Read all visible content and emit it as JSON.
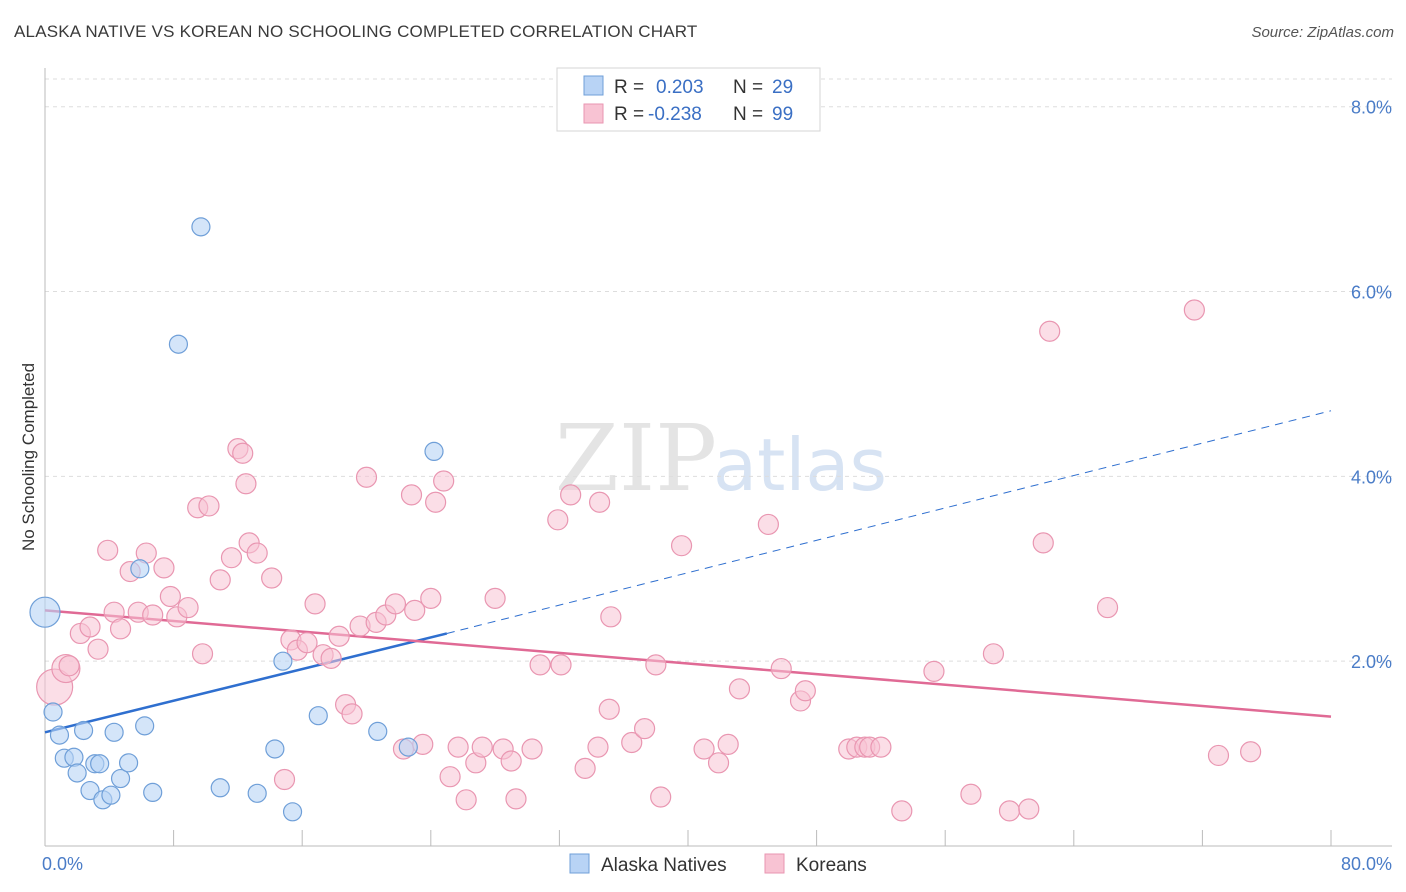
{
  "header": {
    "title": "ALASKA NATIVE VS KOREAN NO SCHOOLING COMPLETED CORRELATION CHART",
    "source": "Source: ZipAtlas.com"
  },
  "colors": {
    "alaska_fill": "#b8d3f5",
    "alaska_stroke": "#6f9fd8",
    "alaska_line": "#2f6fcf",
    "korean_fill": "#f8c3d3",
    "korean_stroke": "#e996b1",
    "korean_line": "#e06a95",
    "tick": "#4a7cc7",
    "grid": "#dddddd"
  },
  "legend": {
    "rows": [
      {
        "r_label": "R =",
        "r_value": "0.203",
        "n_label": "N =",
        "n_value": "29"
      },
      {
        "r_label": "R =",
        "r_value": "-0.238",
        "n_label": "N =",
        "n_value": "99"
      }
    ]
  },
  "watermark": {
    "zip": "ZIP",
    "atlas": "atlas"
  },
  "chart_data": {
    "type": "scatter",
    "xlabel": "",
    "ylabel": "No Schooling Completed",
    "xlim": [
      0,
      80
    ],
    "ylim": [
      0,
      8.3
    ],
    "x_tick_labels": [
      {
        "value": 0,
        "label": "0.0%"
      },
      {
        "value": 80,
        "label": "80.0%"
      }
    ],
    "y_tick_labels": [
      {
        "value": 2,
        "label": "2.0%"
      },
      {
        "value": 4,
        "label": "4.0%"
      },
      {
        "value": 6,
        "label": "6.0%"
      },
      {
        "value": 8,
        "label": "8.0%"
      }
    ],
    "x_minor_ticks": [
      0,
      8,
      16,
      24,
      32,
      40,
      48,
      56,
      64,
      72,
      80
    ],
    "grid": "horizontal dashed",
    "legend_position": "top-center",
    "series": [
      {
        "name": "Alaska Natives",
        "r": 0.203,
        "n": 29,
        "trend": {
          "x0": 0,
          "y0": 1.23,
          "x1": 25,
          "y1": 2.3,
          "dashed_to_x": 80,
          "dashed_to_y": 4.71
        },
        "points": [
          [
            0,
            2.53,
            16
          ],
          [
            0.5,
            1.45,
            10
          ],
          [
            0.9,
            1.2,
            10
          ],
          [
            1.2,
            0.95,
            10
          ],
          [
            1.8,
            0.96,
            10
          ],
          [
            2.0,
            0.79,
            10
          ],
          [
            2.4,
            1.25,
            10
          ],
          [
            2.8,
            0.6,
            10
          ],
          [
            3.1,
            0.89,
            10
          ],
          [
            3.4,
            0.89,
            10
          ],
          [
            3.6,
            0.5,
            10
          ],
          [
            4.1,
            0.55,
            10
          ],
          [
            4.3,
            1.23,
            10
          ],
          [
            4.7,
            0.73,
            10
          ],
          [
            5.2,
            0.9,
            10
          ],
          [
            5.9,
            3.0,
            10
          ],
          [
            6.2,
            1.3,
            10
          ],
          [
            6.7,
            0.58,
            10
          ],
          [
            8.3,
            5.43,
            10
          ],
          [
            9.7,
            6.7,
            10
          ],
          [
            10.9,
            0.63,
            10
          ],
          [
            13.2,
            0.57,
            10
          ],
          [
            14.3,
            1.05,
            10
          ],
          [
            14.8,
            2.0,
            10
          ],
          [
            15.4,
            0.37,
            10
          ],
          [
            17.0,
            1.41,
            10
          ],
          [
            20.7,
            1.24,
            10
          ],
          [
            22.6,
            1.07,
            10
          ],
          [
            24.2,
            4.27,
            10
          ]
        ]
      },
      {
        "name": "Koreans",
        "r": -0.238,
        "n": 99,
        "trend": {
          "x0": 0,
          "y0": 2.55,
          "x1": 80,
          "y1": 1.4
        },
        "points": [
          [
            0.6,
            1.72,
            18
          ],
          [
            1.3,
            1.92,
            14
          ],
          [
            1.5,
            1.95,
            10
          ],
          [
            2.2,
            2.3,
            10
          ],
          [
            2.8,
            2.37,
            10
          ],
          [
            3.3,
            2.13,
            10
          ],
          [
            3.9,
            3.2,
            10
          ],
          [
            4.3,
            2.53,
            10
          ],
          [
            4.7,
            2.35,
            10
          ],
          [
            5.3,
            2.97,
            10
          ],
          [
            5.8,
            2.53,
            10
          ],
          [
            6.3,
            3.17,
            10
          ],
          [
            6.7,
            2.5,
            10
          ],
          [
            7.4,
            3.01,
            10
          ],
          [
            7.8,
            2.7,
            10
          ],
          [
            8.2,
            2.48,
            10
          ],
          [
            8.9,
            2.58,
            10
          ],
          [
            9.5,
            3.66,
            10
          ],
          [
            9.8,
            2.08,
            10
          ],
          [
            10.2,
            3.68,
            10
          ],
          [
            10.9,
            2.88,
            10
          ],
          [
            11.6,
            3.12,
            10
          ],
          [
            12.0,
            4.3,
            10
          ],
          [
            12.3,
            4.25,
            10
          ],
          [
            12.5,
            3.92,
            10
          ],
          [
            12.7,
            3.28,
            10
          ],
          [
            13.2,
            3.17,
            10
          ],
          [
            14.1,
            2.9,
            10
          ],
          [
            14.9,
            0.72,
            10
          ],
          [
            15.3,
            2.23,
            10
          ],
          [
            15.7,
            2.12,
            10
          ],
          [
            16.3,
            2.2,
            10
          ],
          [
            16.8,
            2.62,
            10
          ],
          [
            17.3,
            2.07,
            10
          ],
          [
            17.8,
            2.03,
            10
          ],
          [
            18.3,
            2.27,
            10
          ],
          [
            18.7,
            1.53,
            10
          ],
          [
            19.1,
            1.43,
            10
          ],
          [
            19.6,
            2.38,
            10
          ],
          [
            20.0,
            3.99,
            10
          ],
          [
            20.6,
            2.42,
            10
          ],
          [
            21.2,
            2.5,
            10
          ],
          [
            21.8,
            2.62,
            10
          ],
          [
            22.3,
            1.05,
            10
          ],
          [
            22.8,
            3.8,
            10
          ],
          [
            23.0,
            2.55,
            10
          ],
          [
            23.5,
            1.1,
            10
          ],
          [
            24.0,
            2.68,
            10
          ],
          [
            24.3,
            3.72,
            10
          ],
          [
            24.8,
            3.95,
            10
          ],
          [
            25.2,
            0.75,
            10
          ],
          [
            25.7,
            1.07,
            10
          ],
          [
            26.2,
            0.5,
            10
          ],
          [
            26.8,
            0.9,
            10
          ],
          [
            27.2,
            1.07,
            10
          ],
          [
            28.0,
            2.68,
            10
          ],
          [
            28.5,
            1.05,
            10
          ],
          [
            29.0,
            0.92,
            10
          ],
          [
            29.3,
            0.51,
            10
          ],
          [
            30.3,
            1.05,
            10
          ],
          [
            30.8,
            1.96,
            10
          ],
          [
            31.9,
            3.53,
            10
          ],
          [
            32.1,
            1.96,
            10
          ],
          [
            32.7,
            3.8,
            10
          ],
          [
            33.6,
            0.84,
            10
          ],
          [
            34.4,
            1.07,
            10
          ],
          [
            34.5,
            3.72,
            10
          ],
          [
            35.1,
            1.48,
            10
          ],
          [
            35.2,
            2.48,
            10
          ],
          [
            36.5,
            1.12,
            10
          ],
          [
            37.3,
            1.27,
            10
          ],
          [
            38.0,
            1.96,
            10
          ],
          [
            38.3,
            0.53,
            10
          ],
          [
            39.6,
            3.25,
            10
          ],
          [
            41.0,
            1.05,
            10
          ],
          [
            41.9,
            0.9,
            10
          ],
          [
            42.5,
            1.1,
            10
          ],
          [
            43.2,
            1.7,
            10
          ],
          [
            45.0,
            3.48,
            10
          ],
          [
            45.8,
            1.92,
            10
          ],
          [
            47.0,
            1.57,
            10
          ],
          [
            47.3,
            1.68,
            10
          ],
          [
            50.0,
            1.05,
            10
          ],
          [
            50.5,
            1.07,
            10
          ],
          [
            51.0,
            1.07,
            10
          ],
          [
            51.3,
            1.07,
            10
          ],
          [
            52.0,
            1.07,
            10
          ],
          [
            53.3,
            0.38,
            10
          ],
          [
            55.3,
            1.89,
            10
          ],
          [
            57.6,
            0.56,
            10
          ],
          [
            59.0,
            2.08,
            10
          ],
          [
            60.0,
            0.38,
            10
          ],
          [
            61.2,
            0.4,
            10
          ],
          [
            62.1,
            3.28,
            10
          ],
          [
            62.5,
            5.57,
            10
          ],
          [
            66.1,
            2.58,
            10
          ],
          [
            71.5,
            5.8,
            10
          ],
          [
            73.0,
            0.98,
            10
          ],
          [
            75.0,
            1.02,
            10
          ]
        ]
      }
    ]
  }
}
